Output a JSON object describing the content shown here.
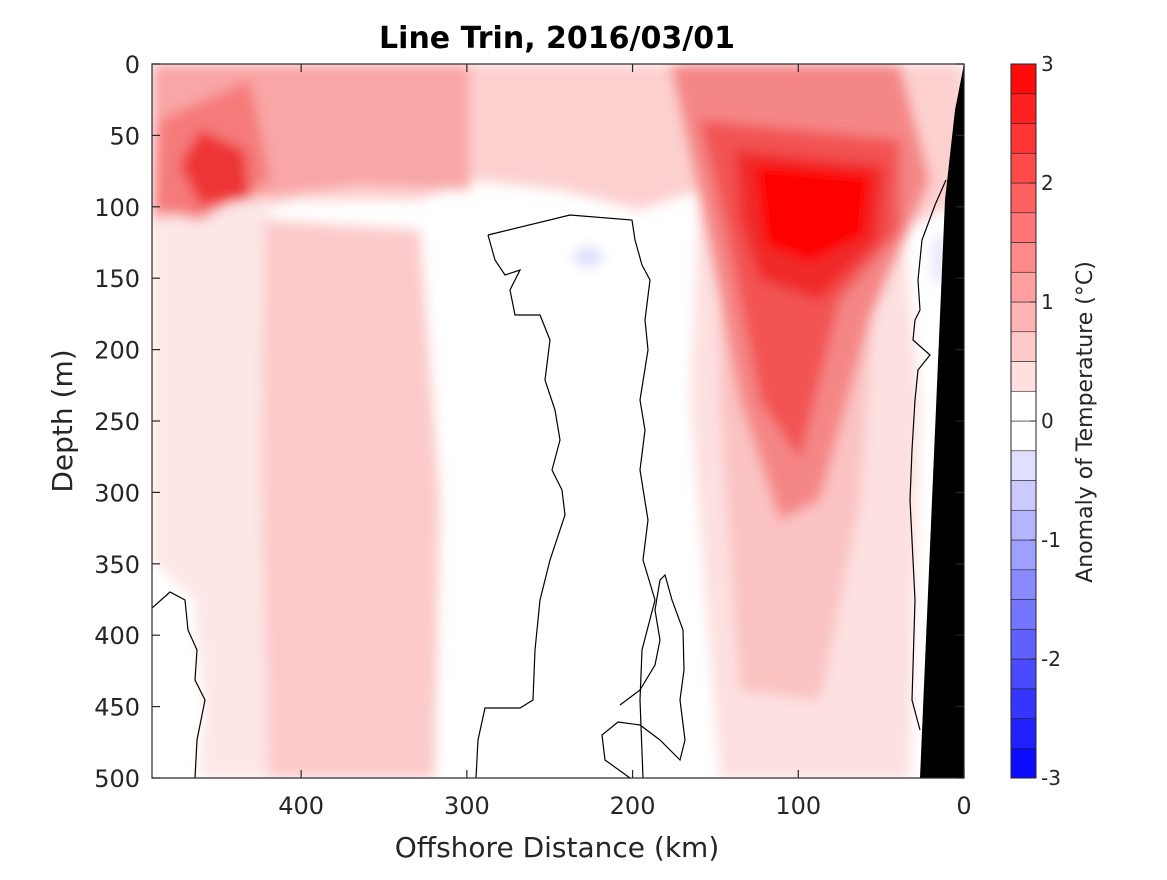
{
  "chart_data": {
    "type": "heatmap",
    "title": "Line Trin, 2016/03/01",
    "xlabel": "Offshore Distance (km)",
    "ylabel": "Depth (m)",
    "xlim": [
      490,
      0
    ],
    "ylim": [
      0,
      500
    ],
    "x_ticks": [
      400,
      300,
      200,
      100,
      0
    ],
    "y_ticks": [
      0,
      50,
      100,
      150,
      200,
      250,
      300,
      350,
      400,
      450,
      500
    ],
    "colorbar": {
      "label": "Anomaly of Temperature (°C)",
      "range": [
        -3,
        3
      ],
      "ticks": [
        3,
        2,
        1,
        0,
        -1,
        -2,
        -3
      ],
      "levels": [
        -3,
        -2.75,
        -2.5,
        -2.25,
        -2,
        -1.75,
        -1.5,
        -1.25,
        -1,
        -0.75,
        -0.5,
        -0.25,
        0,
        0.25,
        0.5,
        0.75,
        1,
        1.25,
        1.5,
        1.75,
        2,
        2.25,
        2.5,
        2.75,
        3
      ],
      "colors": {
        "negative_max": "#0000ff",
        "zero": "#ffffff",
        "positive_max": "#ff0000"
      }
    },
    "contour_line_level": 0,
    "bathymetry_fill": "#000000",
    "features": [
      {
        "name": "warm-core-offshore",
        "x_km": 450,
        "depth_m": 85,
        "anomaly": 2.0
      },
      {
        "name": "warm-core-nearshore",
        "x_km": 95,
        "depth_m": 110,
        "anomaly": 2.9
      },
      {
        "name": "cool-spot-mid",
        "x_km": 230,
        "depth_m": 135,
        "anomaly": -0.3
      },
      {
        "name": "cool-spot-shelf",
        "x_km": 15,
        "depth_m": 130,
        "anomaly": -0.3
      }
    ],
    "grid": false
  }
}
